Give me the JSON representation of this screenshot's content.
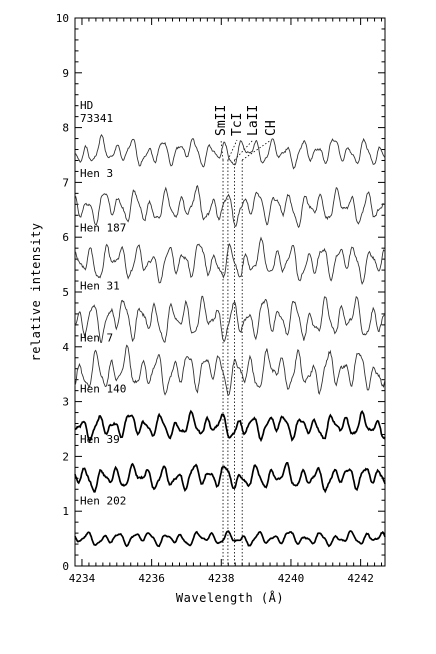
{
  "chart_data": {
    "type": "line",
    "xlabel": "Wavelength (Å)",
    "ylabel": "relative intensity",
    "xlim": [
      4233.8,
      4242.7
    ],
    "ylim": [
      0,
      10
    ],
    "x_ticks": [
      4234,
      4236,
      4238,
      4240,
      4242
    ],
    "y_ticks": [
      0,
      1,
      2,
      3,
      4,
      5,
      6,
      7,
      8,
      9,
      10
    ],
    "grid": false,
    "line_ids": [
      {
        "label": "SmII",
        "wavelength": 4238.05
      },
      {
        "label": "TcI",
        "wavelength": 4238.19
      },
      {
        "label": "LaII",
        "wavelength": 4238.38
      },
      {
        "label": "CH",
        "wavelength": 4238.6
      }
    ],
    "series": [
      {
        "name": "HD 73341",
        "label_lines": [
          "HD",
          "73341"
        ],
        "offset": 7.55,
        "amp": 0.28,
        "bold": false,
        "seed": 1
      },
      {
        "name": "Hen 3",
        "label_lines": [
          "Hen 3"
        ],
        "offset": 6.55,
        "amp": 0.35,
        "bold": false,
        "seed": 2
      },
      {
        "name": "Hen 187",
        "label_lines": [
          "Hen 187"
        ],
        "offset": 5.55,
        "amp": 0.38,
        "bold": false,
        "seed": 3
      },
      {
        "name": "Hen 31",
        "label_lines": [
          "Hen 31"
        ],
        "offset": 4.5,
        "amp": 0.42,
        "bold": false,
        "seed": 4
      },
      {
        "name": "Hen 7",
        "label_lines": [
          "Hen 7"
        ],
        "offset": 3.55,
        "amp": 0.42,
        "bold": false,
        "seed": 5
      },
      {
        "name": "Hen 140",
        "label_lines": [
          "Hen 140"
        ],
        "offset": 2.55,
        "amp": 0.25,
        "bold": true,
        "seed": 6
      },
      {
        "name": "Hen 39",
        "label_lines": [
          "Hen 39"
        ],
        "offset": 1.62,
        "amp": 0.25,
        "bold": true,
        "seed": 7
      },
      {
        "name": "Hen 202",
        "label_lines": [
          "Hen 202"
        ],
        "offset": 0.5,
        "amp": 0.14,
        "bold": true,
        "seed": 8
      }
    ]
  }
}
